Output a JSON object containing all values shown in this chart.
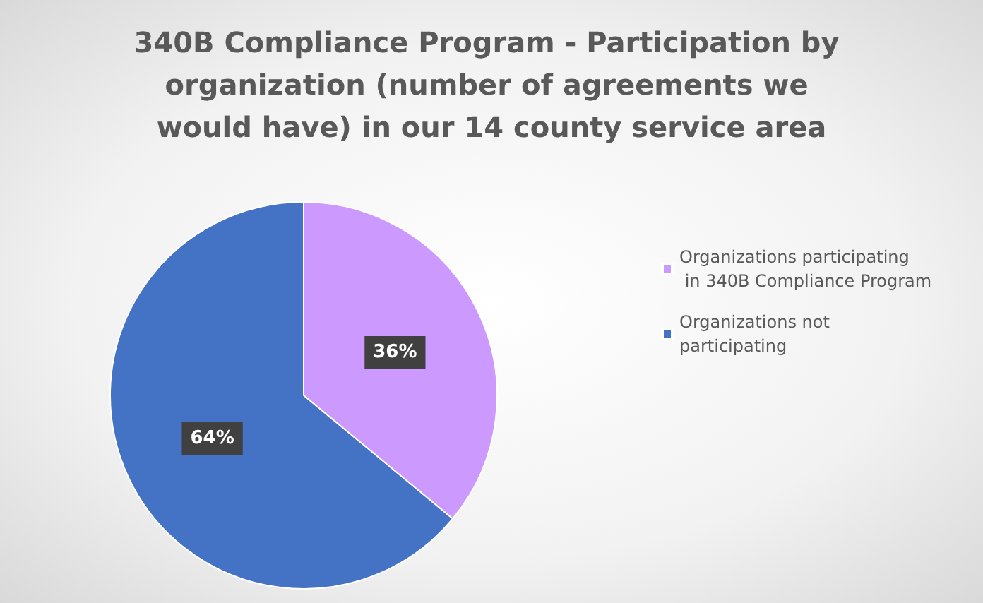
{
  "chart_data": {
    "type": "pie",
    "title": "340B Compliance Program - Participation by organization (number of agreements we would have) in our 14 county service area",
    "categories": [
      "Organizations participating in 340B Compliance Program",
      "Organizations not participating"
    ],
    "values": [
      36,
      64
    ],
    "colors": [
      "#cc99ff",
      "#4472c4"
    ],
    "value_labels": [
      "36%",
      "64%"
    ],
    "legend": "right"
  }
}
